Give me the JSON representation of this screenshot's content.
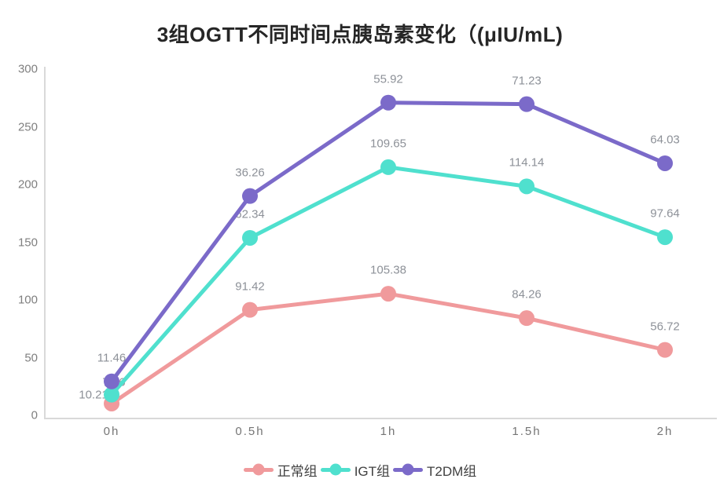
{
  "title": "3组OGTT不同时间点胰岛素变化（(μIU/mL)",
  "colors": {
    "normal_group": "#f09a9c",
    "igt_group": "#4fe0ce",
    "t2dm_group": "#7b6ac9",
    "axis_line": "#d9d9d9",
    "tick_text": "#7f7f7f",
    "data_label_text": "#8d9198",
    "title_text": "#262626",
    "legend_text": "#404040"
  },
  "chart_data": {
    "type": "line",
    "stacked": true,
    "title": "3组OGTT不同时间点胰岛素变化（(μIU/mL)",
    "xlabel": "",
    "ylabel": "",
    "x_tick_labels": [
      "0h",
      "0.5h",
      "1h",
      "1.5h",
      "2h"
    ],
    "y_ticks": [
      300,
      250,
      200,
      150,
      100,
      50,
      0
    ],
    "ylim": [
      0,
      300
    ],
    "grid": false,
    "legend_position": "bottom",
    "series": [
      {
        "name": "正常组",
        "color": "#f09a9c",
        "values": [
          10.21,
          91.42,
          105.38,
          84.26,
          56.72
        ]
      },
      {
        "name": "IGT组",
        "color": "#4fe0ce",
        "values": [
          7.76,
          62.34,
          109.65,
          114.14,
          97.64
        ]
      },
      {
        "name": "T2DM组",
        "color": "#7b6ac9",
        "values": [
          11.46,
          36.26,
          55.92,
          71.23,
          64.03
        ]
      }
    ],
    "data_labels": [
      [
        "10.21",
        "91.42",
        "105.38",
        "84.26",
        "56.72"
      ],
      [
        "7.76",
        "62.34",
        "109.65",
        "114.14",
        "97.64"
      ],
      [
        "11.46",
        "36.26",
        "55.92",
        "71.23",
        "64.03"
      ]
    ]
  }
}
